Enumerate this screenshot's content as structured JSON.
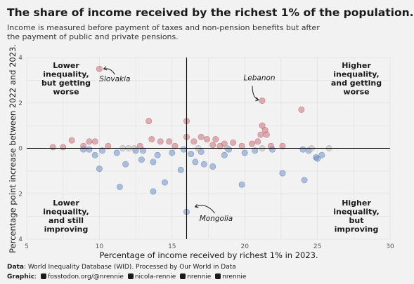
{
  "title": "The share of income received by the richest 1% of the population.",
  "subtitle": "Income is measured before payment of taxes and non-pension benefits but after the payment of public and private pensions.",
  "caption": {
    "data_label": "Data",
    "data_text": ": World Inequality Database (WID). Processed by Our World in Data",
    "graphic_label": "Graphic",
    "graphic_items": [
      "fosstodon.org/@nrennie",
      "nicola-rennie",
      "nrennie",
      "nrennie"
    ]
  },
  "colors": {
    "background": "#f2f2f2",
    "increase": "#c9727a",
    "decrease": "#6f93c9",
    "neutral": "#b9b9b9",
    "axis_lines": "#000000"
  },
  "chart_data": {
    "type": "scatter",
    "xlabel": "Percentage of income received by richest 1% in 2023.",
    "ylabel": "Percentage point increase between 2022 and 2023.",
    "xlim": [
      5,
      30
    ],
    "ylim": [
      -4,
      4
    ],
    "xticks": [
      "5",
      "10",
      "15",
      "20",
      "25",
      "30"
    ],
    "yticks": [
      "4",
      "2",
      "0",
      "2",
      "4"
    ],
    "ytick_values": [
      4,
      2,
      0,
      -2,
      -4
    ],
    "reference_lines": {
      "x": 16,
      "y": 0
    },
    "grid": true,
    "quadrant_labels": [
      {
        "text": "Lower inequality, but getting worse",
        "lines": [
          "Lower",
          "inequality,",
          "but getting",
          "worse"
        ]
      },
      {
        "text": "Higher inequality, and getting worse",
        "lines": [
          "Higher",
          "inequality,",
          "and getting",
          "worse"
        ]
      },
      {
        "text": "Lower inequality, and still improving",
        "lines": [
          "Lower",
          "inequality,",
          "and still",
          "improving"
        ]
      },
      {
        "text": "Higher inequality, but improving",
        "lines": [
          "Higher",
          "inequality,",
          "but",
          "improving"
        ]
      }
    ],
    "annotations": [
      {
        "text": "Slovakia",
        "x": 10.0,
        "y": 3.5
      },
      {
        "text": "Lebanon",
        "x": 21.2,
        "y": 2.1
      },
      {
        "text": "Mongolia",
        "x": 16.0,
        "y": -2.8
      }
    ],
    "series": [
      {
        "group": "increase",
        "points": [
          [
            10.0,
            3.5
          ],
          [
            21.2,
            2.1
          ],
          [
            23.9,
            1.7
          ],
          [
            13.4,
            1.2
          ],
          [
            16.0,
            1.2
          ],
          [
            21.2,
            1.0
          ],
          [
            21.4,
            0.8
          ],
          [
            21.1,
            0.6
          ],
          [
            21.5,
            0.6
          ],
          [
            17.0,
            0.5
          ],
          [
            17.4,
            0.4
          ],
          [
            18.0,
            0.4
          ],
          [
            16.0,
            0.5
          ],
          [
            14.8,
            0.3
          ],
          [
            13.6,
            0.4
          ],
          [
            14.2,
            0.3
          ],
          [
            9.3,
            0.3
          ],
          [
            9.7,
            0.3
          ],
          [
            8.1,
            0.35
          ],
          [
            18.6,
            0.2
          ],
          [
            19.2,
            0.25
          ],
          [
            17.8,
            0.15
          ],
          [
            19.8,
            0.1
          ],
          [
            20.5,
            0.2
          ],
          [
            22.6,
            0.1
          ],
          [
            12.8,
            0.1
          ],
          [
            6.8,
            0.05
          ],
          [
            8.9,
            0.1
          ],
          [
            10.6,
            0.1
          ],
          [
            15.2,
            0.1
          ],
          [
            16.5,
            0.3
          ],
          [
            18.3,
            0.1
          ],
          [
            20.9,
            0.3
          ],
          [
            21.8,
            0.1
          ],
          [
            7.5,
            0.05
          ]
        ]
      },
      {
        "group": "decrease",
        "points": [
          [
            16.0,
            -2.8
          ],
          [
            10.0,
            -0.9
          ],
          [
            11.4,
            -1.7
          ],
          [
            13.7,
            -1.9
          ],
          [
            14.5,
            -1.5
          ],
          [
            19.8,
            -1.6
          ],
          [
            24.1,
            -1.4
          ],
          [
            22.6,
            -1.1
          ],
          [
            15.6,
            -0.95
          ],
          [
            11.8,
            -0.7
          ],
          [
            12.9,
            -0.5
          ],
          [
            13.7,
            -0.6
          ],
          [
            16.6,
            -0.6
          ],
          [
            17.2,
            -0.7
          ],
          [
            17.8,
            -0.8
          ],
          [
            18.6,
            -0.3
          ],
          [
            20.0,
            -0.2
          ],
          [
            24.9,
            -0.4
          ],
          [
            25.3,
            -0.3
          ],
          [
            9.7,
            -0.3
          ],
          [
            14.0,
            -0.3
          ],
          [
            15.0,
            -0.2
          ],
          [
            16.3,
            -0.25
          ],
          [
            17.0,
            -0.15
          ],
          [
            11.2,
            -0.2
          ],
          [
            12.5,
            -0.1
          ],
          [
            8.9,
            -0.05
          ],
          [
            9.3,
            -0.05
          ],
          [
            10.2,
            -0.1
          ],
          [
            13.0,
            -0.1
          ],
          [
            15.8,
            -0.05
          ],
          [
            18.9,
            -0.05
          ],
          [
            20.7,
            -0.1
          ],
          [
            21.9,
            -0.05
          ],
          [
            24.0,
            -0.05
          ],
          [
            24.4,
            -0.1
          ],
          [
            25.0,
            -0.45
          ]
        ]
      },
      {
        "group": "neutral",
        "points": [
          [
            11.6,
            0.0
          ],
          [
            12.0,
            0.0
          ],
          [
            12.4,
            0.0
          ],
          [
            16.8,
            0.0
          ],
          [
            18.8,
            0.0
          ],
          [
            21.2,
            0.0
          ],
          [
            24.6,
            0.0
          ],
          [
            25.8,
            0.0
          ]
        ]
      }
    ]
  }
}
